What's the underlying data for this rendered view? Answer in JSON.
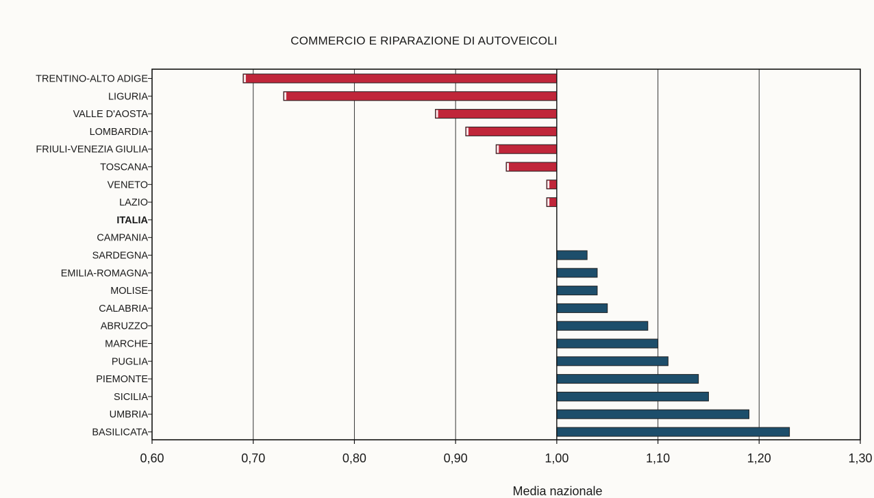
{
  "chart_data": {
    "type": "bar",
    "orientation": "horizontal",
    "title": "COMMERCIO E RIPARAZIONE DI AUTOVEICOLI",
    "xlabel": "Media nazionale",
    "ylabel": "",
    "baseline": 1.0,
    "xlim": [
      0.6,
      1.3
    ],
    "xticks": [
      "0,60",
      "0,70",
      "0,80",
      "0,90",
      "1,00",
      "1,10",
      "1,20",
      "1,30"
    ],
    "grid": "vertical",
    "categories": [
      "TRENTINO-ALTO ADIGE",
      "LIGURIA",
      "VALLE D'AOSTA",
      "LOMBARDIA",
      "FRIULI-VENEZIA GIULIA",
      "TOSCANA",
      "VENETO",
      "LAZIO",
      "ITALIA",
      "CAMPANIA",
      "SARDEGNA",
      "EMILIA-ROMAGNA",
      "MOLISE",
      "CALABRIA",
      "ABRUZZO",
      "MARCHE",
      "PUGLIA",
      "PIEMONTE",
      "SICILIA",
      "UMBRIA",
      "BASILICATA"
    ],
    "values": [
      0.69,
      0.73,
      0.88,
      0.91,
      0.94,
      0.95,
      0.99,
      0.99,
      1.0,
      1.0,
      1.03,
      1.04,
      1.04,
      1.05,
      1.09,
      1.1,
      1.11,
      1.14,
      1.15,
      1.19,
      1.23
    ],
    "bold_categories": [
      "ITALIA"
    ],
    "colors": {
      "below": "#c0263a",
      "above": "#1d4e6b",
      "bar_outline": "#222222",
      "frame": "#111111",
      "grid": "#333333",
      "background": "#fcfbf8"
    }
  }
}
